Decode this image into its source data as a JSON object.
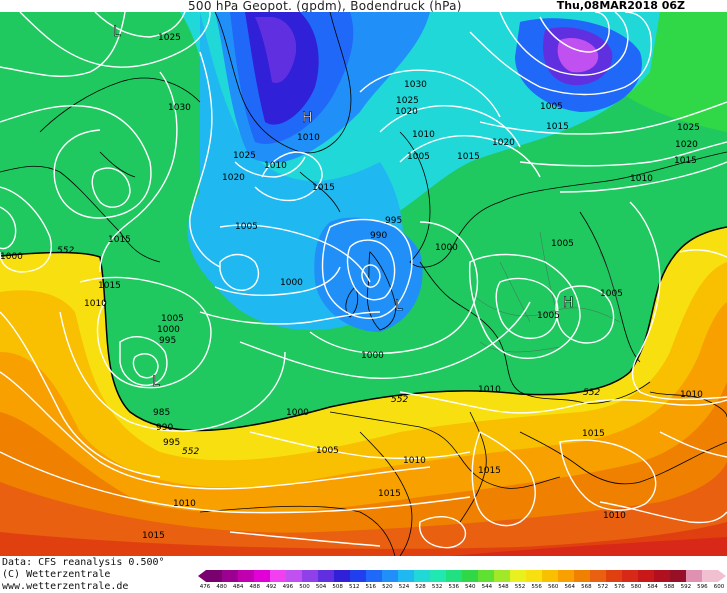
{
  "header": {
    "title": "500 hPa Geopot. (gpdm), Bodendruck (hPa)",
    "valid_time": "Thu,08MAR2018 06Z"
  },
  "footer": {
    "data_source": "Data: CFS reanalysis 0.500°",
    "copyright": "(C) Wetterzentrale",
    "website": "www.wetterzentrale.de"
  },
  "colorbar": {
    "unit": "gpdm",
    "ticks": [
      "476",
      "480",
      "484",
      "488",
      "492",
      "496",
      "500",
      "504",
      "508",
      "512",
      "516",
      "520",
      "524",
      "528",
      "532",
      "536",
      "540",
      "544",
      "548",
      "552",
      "556",
      "560",
      "564",
      "568",
      "572",
      "576",
      "580",
      "584",
      "588",
      "592",
      "596",
      "600"
    ],
    "colors": [
      "#7a0070",
      "#9c0090",
      "#c000b0",
      "#e000d8",
      "#f040f0",
      "#c050f0",
      "#9040e8",
      "#6030e0",
      "#3020d8",
      "#2040f0",
      "#2068f8",
      "#2090f8",
      "#20b8f0",
      "#20d8d8",
      "#20e8b0",
      "#20e080",
      "#30d848",
      "#60e030",
      "#a0e828",
      "#e8f020",
      "#f8e010",
      "#f8c000",
      "#f8a000",
      "#f08000",
      "#e86010",
      "#e04010",
      "#d82818",
      "#c81818",
      "#b01020",
      "#981028",
      "#e090b0",
      "#f0c0d0"
    ]
  },
  "map": {
    "pressure_labels": [
      "1025",
      "1030",
      "1025",
      "1020",
      "1010",
      "1015",
      "1005",
      "1000",
      "995",
      "990",
      "1000",
      "1005",
      "1010",
      "1015",
      "1030",
      "1025",
      "1020",
      "1010",
      "1005",
      "1015",
      "1020",
      "1005",
      "1010",
      "1015",
      "1025",
      "1020",
      "1015",
      "1010",
      "1005",
      "1000",
      "995",
      "1000",
      "1005",
      "1010",
      "1015",
      "1010",
      "1015",
      "1010",
      "1015",
      "1005",
      "1000",
      "995",
      "990",
      "985",
      "1010",
      "1015",
      "1015",
      "1010",
      "1000",
      "1005"
    ],
    "geopotential_label": "552",
    "high_symbol": "H",
    "low_symbol": "L"
  }
}
